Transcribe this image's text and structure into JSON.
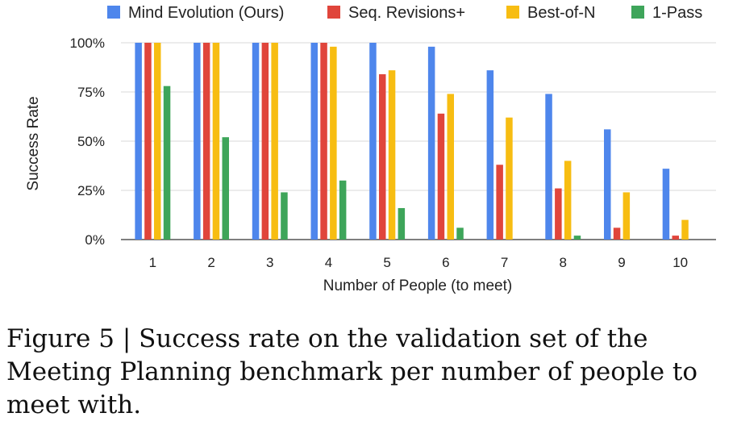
{
  "chart_data": {
    "type": "bar",
    "categories": [
      "1",
      "2",
      "3",
      "4",
      "5",
      "6",
      "7",
      "8",
      "9",
      "10"
    ],
    "series": [
      {
        "name": "Mind Evolution (Ours)",
        "color": "#4e86ec",
        "values": [
          100,
          100,
          100,
          100,
          100,
          98,
          86,
          74,
          56,
          36
        ]
      },
      {
        "name": "Seq. Revisions+",
        "color": "#e0453b",
        "values": [
          100,
          100,
          100,
          100,
          84,
          64,
          38,
          26,
          6,
          2
        ]
      },
      {
        "name": "Best-of-N",
        "color": "#f7bd12",
        "values": [
          100,
          100,
          100,
          98,
          86,
          74,
          62,
          40,
          24,
          10
        ]
      },
      {
        "name": "1-Pass",
        "color": "#3ea55a",
        "values": [
          78,
          52,
          24,
          30,
          16,
          6,
          0,
          2,
          0,
          0
        ]
      }
    ],
    "xlabel": "Number of People (to meet)",
    "ylabel": "Success Rate",
    "ylim": [
      0,
      100
    ],
    "yticks": [
      0,
      25,
      50,
      75,
      100
    ],
    "ytick_labels": [
      "0%",
      "25%",
      "50%",
      "75%",
      "100%"
    ],
    "grid": true,
    "legend_position": "top"
  },
  "caption": "Figure 5 | Success rate on the validation set of the Meeting Planning benchmark per number of people to meet with."
}
